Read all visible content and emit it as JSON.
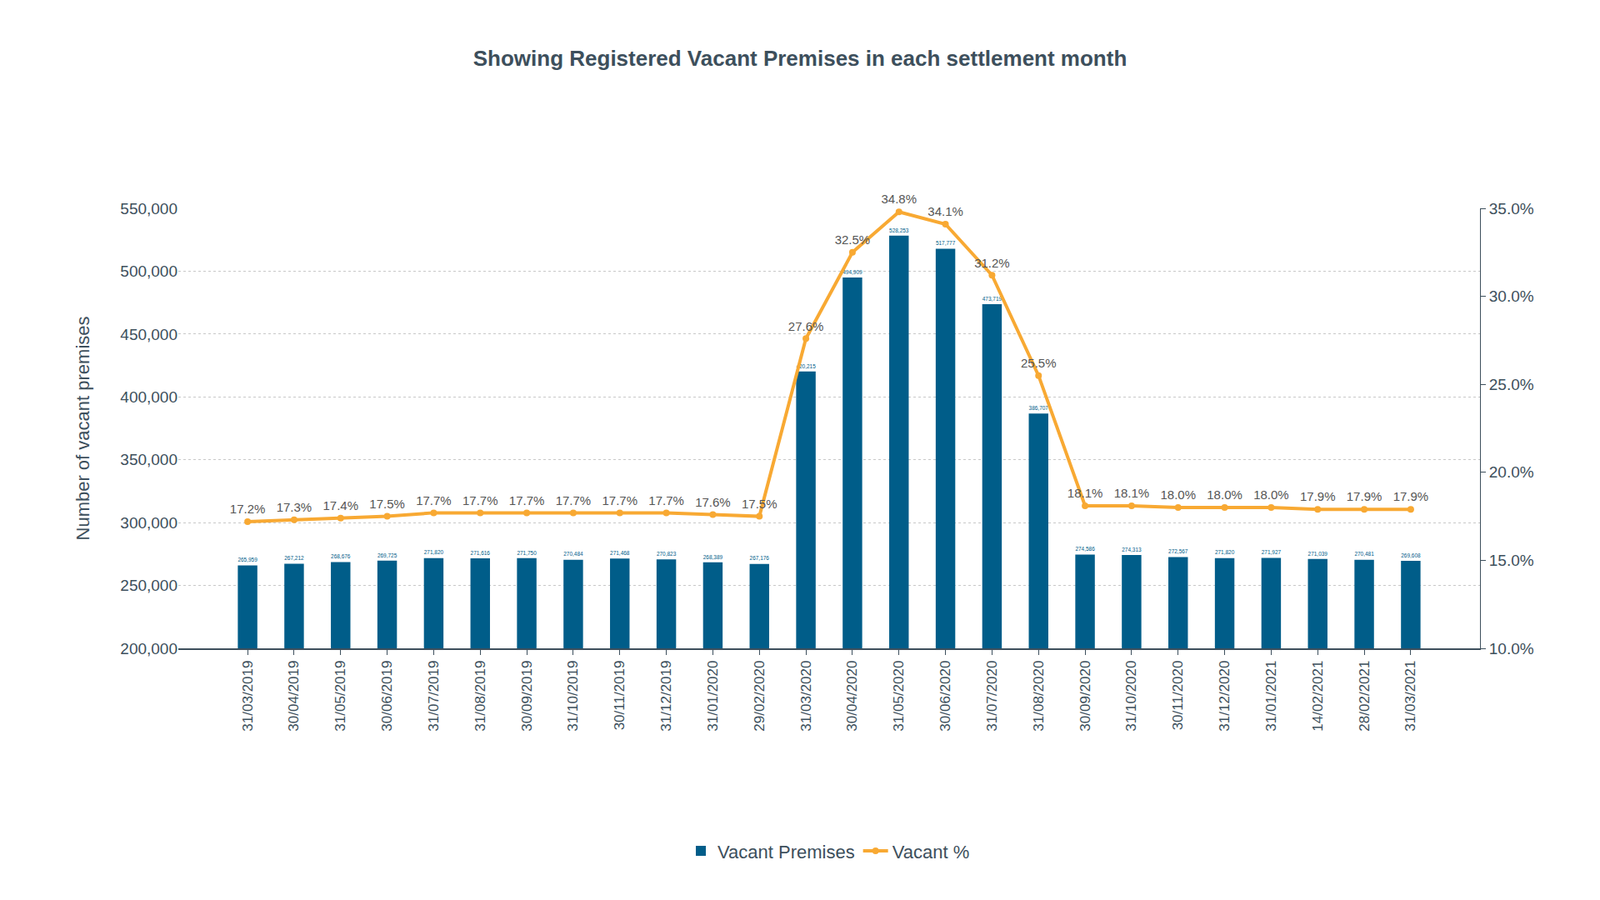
{
  "chart_data": {
    "type": "bar",
    "title": "Showing Registered Vacant Premises in each settlement month",
    "y_label": "Number of vacant premises",
    "categories": [
      "31/03/2019",
      "30/04/2019",
      "31/05/2019",
      "30/06/2019",
      "31/07/2019",
      "31/08/2019",
      "30/09/2019",
      "31/10/2019",
      "30/11/2019",
      "31/12/2019",
      "31/01/2020",
      "29/02/2020",
      "31/03/2020",
      "30/04/2020",
      "31/05/2020",
      "30/06/2020",
      "31/07/2020",
      "31/08/2020",
      "30/09/2020",
      "31/10/2020",
      "30/11/2020",
      "31/12/2020",
      "31/01/2021",
      "14/02/2021",
      "28/02/2021",
      "31/03/2021"
    ],
    "series": [
      {
        "name": "Vacant Premises",
        "type": "bar",
        "color": "#005d89",
        "values": [
          265959,
          267212,
          268676,
          269725,
          271820,
          271616,
          271750,
          270484,
          271468,
          270823,
          268389,
          267176,
          420215,
          494909,
          528253,
          517777,
          473719,
          386707,
          274586,
          274313,
          272567,
          271820,
          271927,
          271039,
          270481,
          269608
        ],
        "value_labels": [
          "265,959",
          "267,212",
          "268,676",
          "269,725",
          "271,820",
          "271,616",
          "271,750",
          "270,484",
          "271,468",
          "270,823",
          "268,389",
          "267,176",
          "420,215",
          "494,909",
          "528,253",
          "517,777",
          "473,719",
          "386,707",
          "274,586",
          "274,313",
          "272,567",
          "271,820",
          "271,927",
          "271,039",
          "270,481",
          "269,608"
        ]
      },
      {
        "name": "Vacant %",
        "type": "line",
        "axis": "y2",
        "color": "#f8a933",
        "marker": "circle",
        "values": [
          17.2,
          17.3,
          17.4,
          17.5,
          17.7,
          17.7,
          17.7,
          17.7,
          17.7,
          17.7,
          17.6,
          17.5,
          27.6,
          32.5,
          34.8,
          34.1,
          31.2,
          25.5,
          18.1,
          18.1,
          18.0,
          18.0,
          18.0,
          17.9,
          17.9,
          17.9
        ],
        "value_labels": [
          "17.2%",
          "17.3%",
          "17.4%",
          "17.5%",
          "17.7%",
          "17.7%",
          "17.7%",
          "17.7%",
          "17.7%",
          "17.7%",
          "17.6%",
          "17.5%",
          "27.6%",
          "32.5%",
          "34.8%",
          "34.1%",
          "31.2%",
          "25.5%",
          "18.1%",
          "18.1%",
          "18.0%",
          "18.0%",
          "18.0%",
          "17.9%",
          "17.9%",
          "17.9%"
        ]
      }
    ],
    "ylim": [
      200000,
      550000
    ],
    "yticks": [
      {
        "value": 200000,
        "label": "200,000"
      },
      {
        "value": 250000,
        "label": "250,000"
      },
      {
        "value": 300000,
        "label": "300,000"
      },
      {
        "value": 350000,
        "label": "350,000"
      },
      {
        "value": 400000,
        "label": "400,000"
      },
      {
        "value": 450000,
        "label": "450,000"
      },
      {
        "value": 500000,
        "label": "500,000"
      },
      {
        "value": 550000,
        "label": "550,000"
      }
    ],
    "y2lim": [
      10,
      35
    ],
    "y2ticks": [
      {
        "value": 10,
        "label": "10.0%"
      },
      {
        "value": 15,
        "label": "15.0%"
      },
      {
        "value": 20,
        "label": "20.0%"
      },
      {
        "value": 25,
        "label": "25.0%"
      },
      {
        "value": 30,
        "label": "30.0%"
      },
      {
        "value": 35,
        "label": "35.0%"
      }
    ],
    "grid": true,
    "legend": "bottom",
    "data_labels": true
  }
}
